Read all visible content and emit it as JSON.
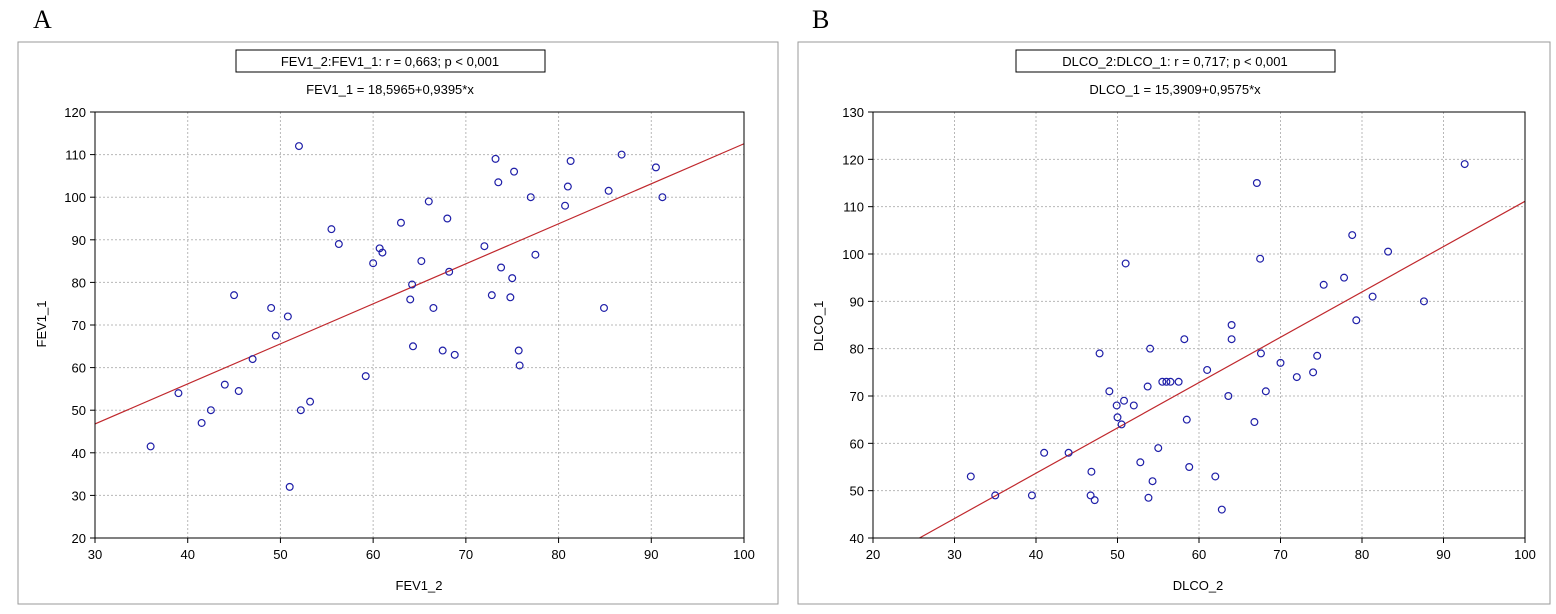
{
  "chart_data": [
    {
      "type": "scatter",
      "panel_label": "A",
      "title": "FEV1_2:FEV1_1:   r = 0,663; p < 0,001",
      "subtitle": "FEV1_1 = 18,5965+0,9395*x",
      "xlabel": "FEV1_2",
      "ylabel": "FEV1_1",
      "xlim": [
        30,
        100
      ],
      "ylim": [
        20,
        120
      ],
      "xticks": [
        "30",
        "40",
        "50",
        "60",
        "70",
        "80",
        "90",
        "100"
      ],
      "yticks": [
        "20",
        "30",
        "40",
        "50",
        "60",
        "70",
        "80",
        "90",
        "100",
        "110",
        "120"
      ],
      "grid": true,
      "regression": {
        "intercept": 18.5965,
        "slope": 0.9395
      },
      "points": [
        [
          36,
          41.5
        ],
        [
          39,
          54
        ],
        [
          41.5,
          47
        ],
        [
          42.5,
          50
        ],
        [
          44,
          56
        ],
        [
          45,
          77
        ],
        [
          45.5,
          54.5
        ],
        [
          47,
          62
        ],
        [
          49,
          74
        ],
        [
          49.5,
          67.5
        ],
        [
          50.8,
          72
        ],
        [
          51,
          32
        ],
        [
          52,
          112
        ],
        [
          52.2,
          50
        ],
        [
          53.2,
          52
        ],
        [
          55.5,
          92.5
        ],
        [
          56.3,
          89
        ],
        [
          59.2,
          58
        ],
        [
          60,
          84.5
        ],
        [
          60.7,
          88
        ],
        [
          61,
          87
        ],
        [
          63,
          94
        ],
        [
          64,
          76
        ],
        [
          64.2,
          79.5
        ],
        [
          64.3,
          65
        ],
        [
          65.2,
          85
        ],
        [
          66,
          99
        ],
        [
          66.5,
          74
        ],
        [
          67.5,
          64
        ],
        [
          68,
          95
        ],
        [
          68.2,
          82.5
        ],
        [
          68.8,
          63
        ],
        [
          72,
          88.5
        ],
        [
          72.8,
          77
        ],
        [
          73.2,
          109
        ],
        [
          73.5,
          103.5
        ],
        [
          73.8,
          83.5
        ],
        [
          74.8,
          76.5
        ],
        [
          75,
          81
        ],
        [
          75.2,
          106
        ],
        [
          75.7,
          64
        ],
        [
          75.8,
          60.5
        ],
        [
          77,
          100
        ],
        [
          77.5,
          86.5
        ],
        [
          80.7,
          98
        ],
        [
          81,
          102.5
        ],
        [
          81.3,
          108.5
        ],
        [
          84.9,
          74
        ],
        [
          85.4,
          101.5
        ],
        [
          86.8,
          110
        ],
        [
          90.5,
          107
        ],
        [
          91.2,
          100
        ]
      ]
    },
    {
      "type": "scatter",
      "panel_label": "B",
      "title": "DLCO_2:DLCO_1:   r = 0,717; p < 0,001",
      "subtitle": "DLCO_1 = 15,3909+0,9575*x",
      "xlabel": "DLCO_2",
      "ylabel": "DLCO_1",
      "xlim": [
        20,
        100
      ],
      "ylim": [
        40,
        130
      ],
      "xticks": [
        "20",
        "30",
        "40",
        "50",
        "60",
        "70",
        "80",
        "90",
        "100"
      ],
      "yticks": [
        "40",
        "50",
        "60",
        "70",
        "80",
        "90",
        "100",
        "110",
        "120",
        "130"
      ],
      "grid": true,
      "regression": {
        "intercept": 15.3909,
        "slope": 0.9575
      },
      "points": [
        [
          32,
          53
        ],
        [
          35,
          49
        ],
        [
          39.5,
          49
        ],
        [
          41,
          58
        ],
        [
          44,
          58
        ],
        [
          46.7,
          49
        ],
        [
          46.8,
          54
        ],
        [
          47.2,
          48
        ],
        [
          47.8,
          79
        ],
        [
          49,
          71
        ],
        [
          49.9,
          68
        ],
        [
          50,
          65.5
        ],
        [
          50.5,
          64
        ],
        [
          50.8,
          69
        ],
        [
          51,
          98
        ],
        [
          52,
          68
        ],
        [
          52.8,
          56
        ],
        [
          53.7,
          72
        ],
        [
          53.8,
          48.5
        ],
        [
          54,
          80
        ],
        [
          54.3,
          52
        ],
        [
          55,
          59
        ],
        [
          55.5,
          73
        ],
        [
          56,
          73
        ],
        [
          56.5,
          73
        ],
        [
          57.5,
          73
        ],
        [
          58.2,
          82
        ],
        [
          58.5,
          65
        ],
        [
          58.8,
          55
        ],
        [
          61,
          75.5
        ],
        [
          62,
          53
        ],
        [
          62.8,
          46
        ],
        [
          63.6,
          70
        ],
        [
          64,
          82
        ],
        [
          64,
          85
        ],
        [
          66.8,
          64.5
        ],
        [
          67.1,
          115
        ],
        [
          67.5,
          99
        ],
        [
          67.6,
          79
        ],
        [
          68.2,
          71
        ],
        [
          70,
          77
        ],
        [
          72,
          74
        ],
        [
          74,
          75
        ],
        [
          74.5,
          78.5
        ],
        [
          75.3,
          93.5
        ],
        [
          77.8,
          95
        ],
        [
          78.8,
          104
        ],
        [
          79.3,
          86
        ],
        [
          81.3,
          91
        ],
        [
          83.2,
          100.5
        ],
        [
          87.6,
          90
        ],
        [
          92.6,
          119
        ]
      ]
    }
  ]
}
